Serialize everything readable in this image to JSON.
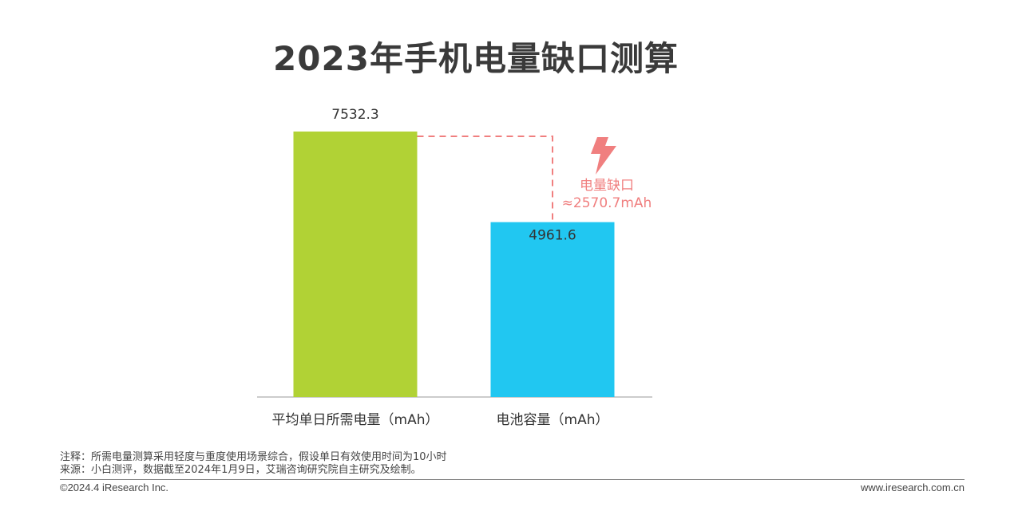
{
  "title": "2023年手机电量缺口测算",
  "chart_data": {
    "type": "bar",
    "categories": [
      "平均单日所需电量（mAh）",
      "电池容量（mAh）"
    ],
    "values": [
      7532.3,
      4961.6
    ],
    "value_labels": [
      "7532.3",
      "4961.6"
    ],
    "colors": [
      "#b1d235",
      "#21c7f1"
    ],
    "ylim": [
      0,
      7532.3
    ],
    "grid": false,
    "annotation": {
      "label": "电量缺口",
      "value_label": "≈2570.7mAh",
      "color": "#f07f7f",
      "icon": "lightning-icon"
    }
  },
  "notes": {
    "note": "注释：所需电量测算采用轻度与重度使用场景综合，假设单日有效使用时间为10小时",
    "source": "来源：小白测评，数据截至2024年1月9日，艾瑞咨询研究院自主研究及绘制。"
  },
  "footer": {
    "copyright": "©2024.4 iResearch Inc.",
    "website": "www.iresearch.com.cn"
  }
}
